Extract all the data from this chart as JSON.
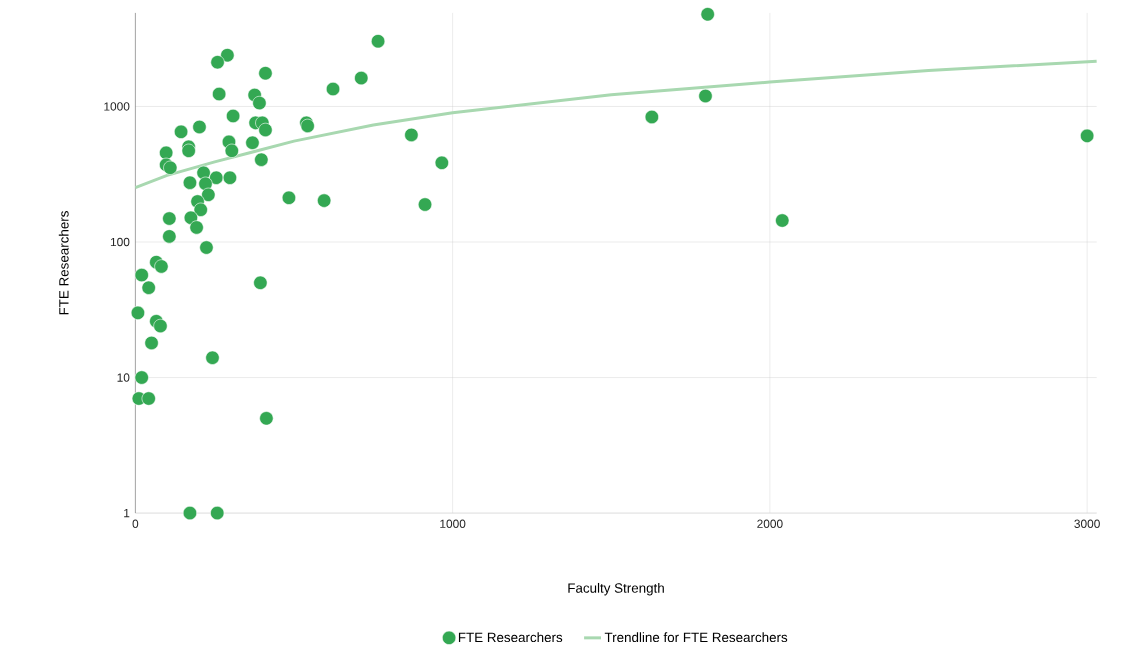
{
  "chart_data": {
    "type": "scatter",
    "xlabel": "Faculty Strength",
    "ylabel": "FTE Researchers",
    "log": "y",
    "grid": true,
    "legend": "bottom",
    "xlim": [
      0,
      3030
    ],
    "ylim": [
      1,
      4900
    ],
    "xticks": [
      0,
      1000,
      2000,
      3000
    ],
    "yticks": [
      1,
      10,
      100,
      1000
    ],
    "series": [
      {
        "name": "FTE Researchers",
        "color": "#34a853",
        "marker": "circle",
        "x": [
          1804,
          765,
          290,
          259,
          410,
          712,
          623,
          264,
          1797,
          376,
          391,
          1628,
          308,
          539,
          543,
          202,
          379,
          400,
          410,
          144,
          870,
          3000,
          295,
          369,
          168,
          168,
          304,
          97,
          397,
          966,
          97,
          110,
          215,
          255,
          298,
          172,
          221,
          230,
          484,
          595,
          913,
          196,
          206,
          175,
          107,
          193,
          107,
          224,
          2039,
          66,
          82,
          20,
          394,
          42,
          8,
          66,
          79,
          51,
          243,
          20,
          11,
          42,
          413,
          172,
          258
        ],
        "values": [
          4790,
          3030,
          2390,
          2120,
          1760,
          1620,
          1345,
          1235,
          1195,
          1215,
          1060,
          837,
          851,
          757,
          719,
          706,
          757,
          757,
          671,
          650,
          617,
          607,
          548,
          540,
          504,
          471,
          471,
          455,
          405,
          384,
          371,
          353,
          324,
          298,
          298,
          274,
          269,
          223,
          212,
          202,
          189,
          199,
          173,
          151,
          149,
          128,
          110,
          91,
          144,
          71,
          66,
          57,
          50,
          46,
          30,
          26,
          24,
          18,
          14,
          10,
          7,
          7,
          5,
          1,
          1
        ]
      },
      {
        "name": "Trendline for FTE Researchers",
        "type": "line",
        "color": "#a8d8b0",
        "marker": "none",
        "line_style": "solid",
        "x": [
          0,
          100,
          250,
          500,
          750,
          1000,
          1500,
          2000,
          2500,
          3030
        ],
        "values": [
          252,
          310,
          390,
          555,
          730,
          900,
          1220,
          1515,
          1840,
          2160
        ]
      }
    ]
  }
}
